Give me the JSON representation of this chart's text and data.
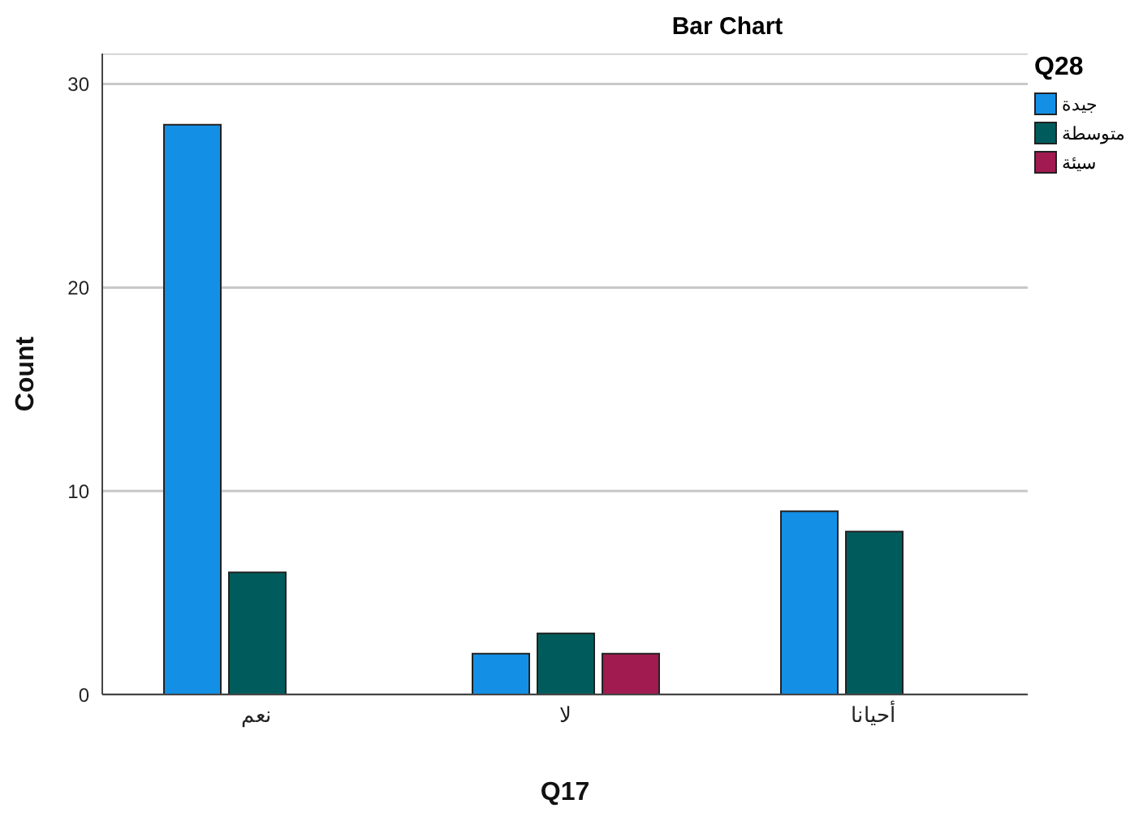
{
  "chart_data": {
    "type": "bar",
    "title": "Bar Chart",
    "xlabel": "Q17",
    "ylabel": "Count",
    "legend_title": "Q28",
    "categories": [
      "نعم",
      "لا",
      "أحيانا"
    ],
    "series": [
      {
        "name": "جيدة",
        "color": "#1390e6",
        "values": [
          28,
          2,
          9
        ]
      },
      {
        "name": "متوسطة",
        "color": "#005c5c",
        "values": [
          6,
          3,
          8
        ]
      },
      {
        "name": "سيئة",
        "color": "#a11a50",
        "values": [
          null,
          2,
          null
        ]
      }
    ],
    "ylim": [
      0,
      31.5
    ],
    "yticks": [
      0,
      10,
      20,
      30
    ],
    "grid": "y",
    "legend": "top right"
  }
}
